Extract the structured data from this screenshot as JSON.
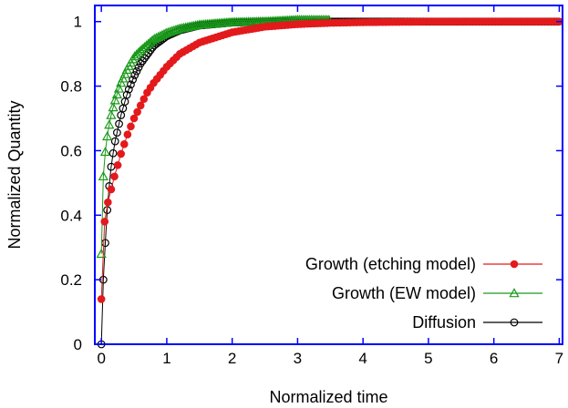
{
  "chart_data": {
    "type": "line",
    "title": "",
    "xlabel": "Normalized time",
    "ylabel": "Normalized Quantity",
    "xlim": [
      -0.1,
      7.05
    ],
    "ylim": [
      0,
      1.05
    ],
    "x_ticks": [
      0,
      1,
      2,
      3,
      4,
      5,
      6,
      7
    ],
    "y_ticks": [
      0,
      0.2,
      0.4,
      0.6,
      0.8,
      1
    ],
    "x_tick_labels": [
      "0",
      "1",
      "2",
      "3",
      "4",
      "5",
      "6",
      "7"
    ],
    "y_tick_labels": [
      "0",
      "0.2",
      "0.4",
      "0.6",
      "0.8",
      "1"
    ],
    "grid": false,
    "legend_position": "bottom-right",
    "axis_color": "#0000ff",
    "series": [
      {
        "name": "Growth (etching model)",
        "color": "#e31a1c",
        "marker": "filled-circle",
        "x": [
          0,
          0.05,
          0.1,
          0.2,
          0.3,
          0.4,
          0.5,
          0.6,
          0.7,
          0.8,
          1.0,
          1.2,
          1.5,
          2.0,
          2.5,
          3.0,
          3.5,
          4.0,
          5.0,
          6.0,
          7.0
        ],
        "y": [
          0.14,
          0.38,
          0.44,
          0.52,
          0.59,
          0.65,
          0.7,
          0.74,
          0.78,
          0.81,
          0.86,
          0.9,
          0.935,
          0.967,
          0.984,
          0.992,
          0.996,
          0.998,
          1.0,
          1.0,
          1.0
        ]
      },
      {
        "name": "Growth (EW model)",
        "color": "#1a9a1a",
        "marker": "open-triangle",
        "x": [
          0,
          0.01,
          0.03,
          0.05,
          0.1,
          0.15,
          0.2,
          0.3,
          0.4,
          0.5,
          0.6,
          0.8,
          1.0,
          1.2,
          1.5,
          2.0,
          2.5,
          3.0,
          3.5
        ],
        "y": [
          0.28,
          0.45,
          0.52,
          0.58,
          0.66,
          0.71,
          0.75,
          0.81,
          0.855,
          0.89,
          0.91,
          0.945,
          0.965,
          0.978,
          0.99,
          0.998,
          1.0,
          1.005,
          1.005
        ]
      },
      {
        "name": "Diffusion",
        "color": "#000000",
        "marker": "open-circle",
        "x": [
          0,
          0.03,
          0.05,
          0.1,
          0.15,
          0.2,
          0.3,
          0.4,
          0.5,
          0.6,
          0.8,
          1.0,
          1.2,
          1.5,
          2.0,
          2.5,
          3.0,
          4.0,
          5.0,
          6.0,
          7.0
        ],
        "y": [
          0,
          0.2,
          0.28,
          0.45,
          0.55,
          0.62,
          0.71,
          0.78,
          0.83,
          0.87,
          0.925,
          0.955,
          0.973,
          0.988,
          0.997,
          1.0,
          1.0,
          1.0,
          1.0,
          1.0,
          1.0
        ]
      }
    ]
  }
}
